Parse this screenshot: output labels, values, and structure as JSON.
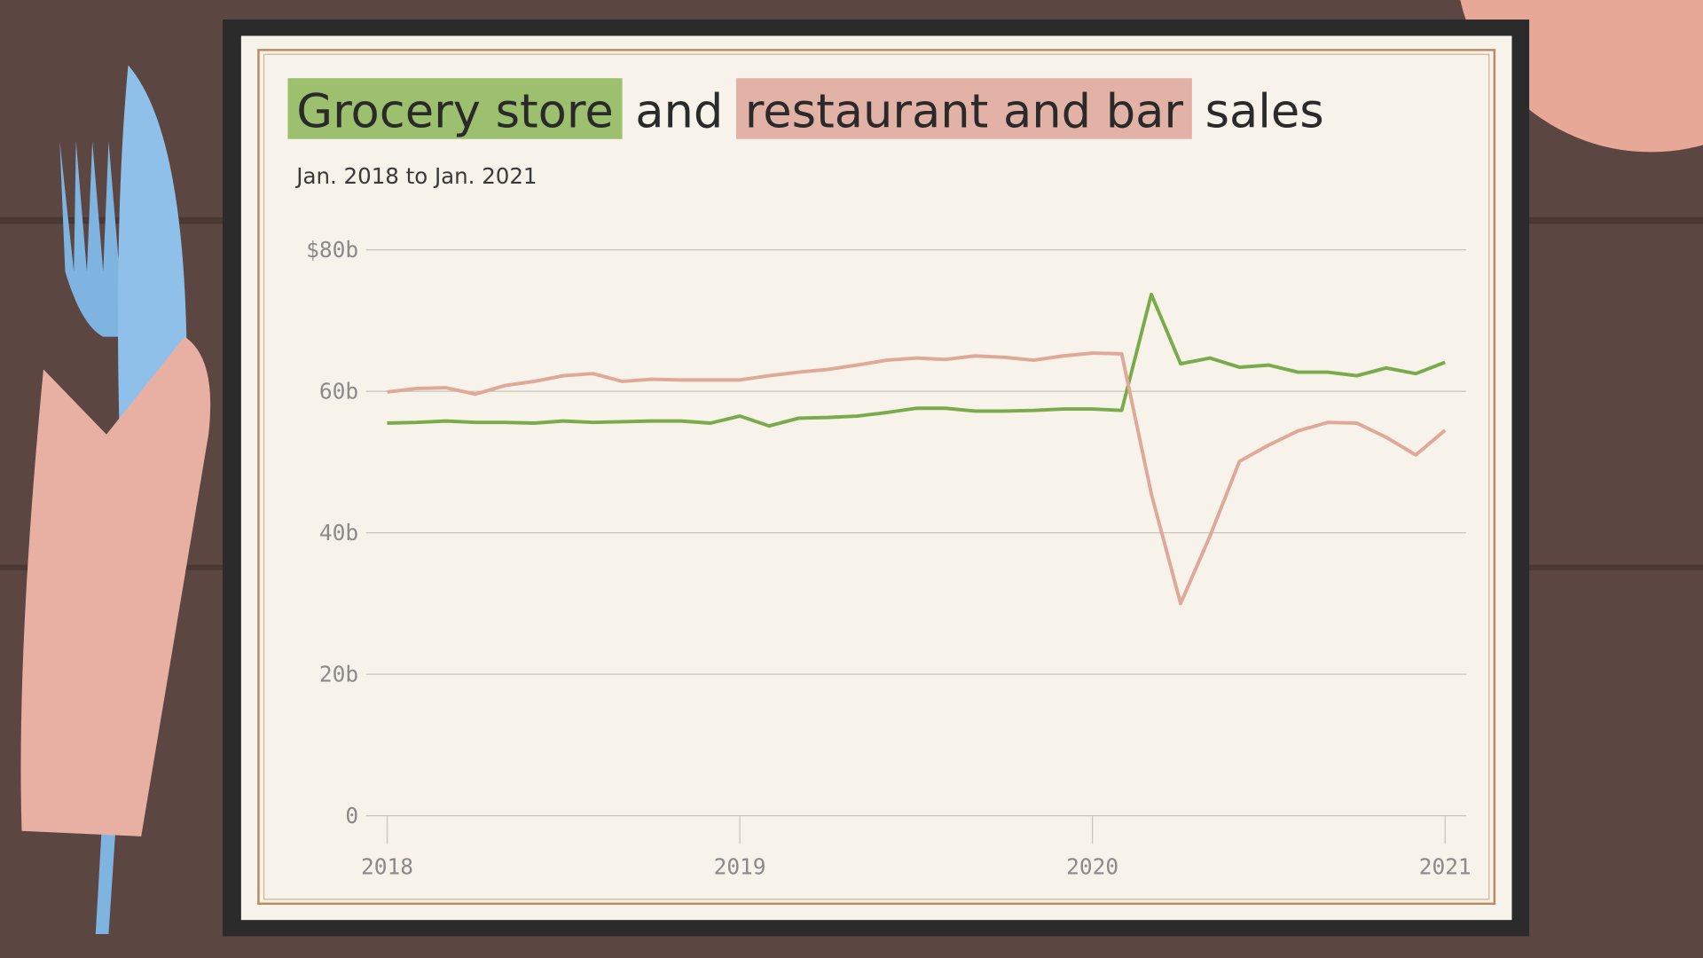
{
  "chart_data": {
    "type": "line",
    "subtitle": "Jan. 2018 to Jan. 2021",
    "title_words": [
      "and",
      "sales"
    ],
    "x": [
      2018.0,
      2018.083,
      2018.167,
      2018.25,
      2018.333,
      2018.417,
      2018.5,
      2018.583,
      2018.667,
      2018.75,
      2018.833,
      2018.917,
      2019.0,
      2019.083,
      2019.167,
      2019.25,
      2019.333,
      2019.417,
      2019.5,
      2019.583,
      2019.667,
      2019.75,
      2019.833,
      2019.917,
      2020.0,
      2020.083,
      2020.167,
      2020.25,
      2020.333,
      2020.417,
      2020.5,
      2020.583,
      2020.667,
      2020.75,
      2020.833,
      2020.917,
      2021.0
    ],
    "series": [
      {
        "name": "Grocery store",
        "color": "#7aab4a",
        "highlight": "#9dc06e",
        "values": [
          55.5,
          55.6,
          55.8,
          55.6,
          55.6,
          55.5,
          55.8,
          55.6,
          55.7,
          55.8,
          55.8,
          55.5,
          56.5,
          55.1,
          56.2,
          56.3,
          56.5,
          57.0,
          57.6,
          57.6,
          57.2,
          57.2,
          57.3,
          57.5,
          57.5,
          57.3,
          73.7,
          63.9,
          64.7,
          63.4,
          63.7,
          62.7,
          62.7,
          62.2,
          63.3,
          62.5,
          64.1
        ]
      },
      {
        "name": "restaurant and bar",
        "color": "#e0a898",
        "highlight": "#e2b2a6",
        "values": [
          59.9,
          60.4,
          60.5,
          59.6,
          60.8,
          61.4,
          62.2,
          62.5,
          61.4,
          61.7,
          61.6,
          61.6,
          61.6,
          62.2,
          62.7,
          63.1,
          63.7,
          64.4,
          64.7,
          64.5,
          65.0,
          64.8,
          64.4,
          65.0,
          65.4,
          65.3,
          45.5,
          30.0,
          39.5,
          50.1,
          52.4,
          54.4,
          55.6,
          55.5,
          53.5,
          51.0,
          54.5
        ]
      }
    ],
    "xlim": [
      2017.94,
      2021.06
    ],
    "xticks": [
      2018,
      2019,
      2020,
      2021
    ],
    "ylim": [
      0,
      80
    ],
    "yticks": [
      0,
      {
        "value": 20,
        "label": "20b"
      },
      {
        "value": 40,
        "label": "40b"
      },
      {
        "value": 60,
        "label": "60b"
      },
      {
        "value": 80,
        "label": "$80b"
      }
    ],
    "grid": true
  }
}
